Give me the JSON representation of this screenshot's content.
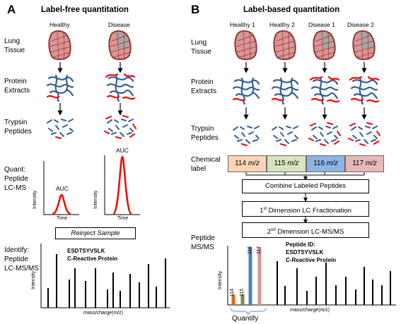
{
  "panel_a": {
    "letter": "A",
    "title": "Label-free quantitation",
    "columns": [
      "Healthy",
      "Disease"
    ],
    "rows": {
      "tissue": [
        "Lung",
        "Tissue"
      ],
      "extracts": [
        "Protein",
        "Extracts"
      ],
      "peptides": [
        "Trypsin",
        "Peptides"
      ],
      "quant": [
        "Quant:",
        "Peptide",
        "LC-MS"
      ],
      "identify": [
        "Identify:",
        "Peptide",
        "LC-MS/MS"
      ]
    },
    "auc_label": "AUC",
    "intensity_label": "Intensity",
    "time_label": "Time",
    "reinject_label": "Reinject Sample",
    "peptide_name": "ESDTSYVSLK",
    "protein_name": "C-Reactive Protein",
    "xaxis_label": "mass/charge(m/z)",
    "yaxis_label": "Intensity"
  },
  "panel_b": {
    "letter": "B",
    "title": "Label-based quantitation",
    "columns": [
      "Healthy 1",
      "Healthy 2",
      "Disease 1",
      "Disease 2"
    ],
    "rows": {
      "tissue": [
        "Lung",
        "Tissue"
      ],
      "extracts": [
        "Protein",
        "Extracts"
      ],
      "peptides": [
        "Trypsin",
        "Peptides"
      ],
      "chemical": [
        "Chemical",
        "label"
      ],
      "msms": [
        "Peptide",
        "MS/MS"
      ]
    },
    "labels": [
      {
        "num": "114",
        "unit": "m/z",
        "color": "#fbd5b5"
      },
      {
        "num": "115",
        "unit": "m/z",
        "color": "#d7e4bd"
      },
      {
        "num": "116",
        "unit": "m/z",
        "color": "#8eb4e3"
      },
      {
        "num": "117",
        "unit": "m/z",
        "color": "#e6b9b8"
      }
    ],
    "combine": "Combine Labeled Peptides",
    "first_dim": {
      "prefix": "1",
      "sup": "st",
      "rest": " Dimension LC Fractionation"
    },
    "second_dim": {
      "prefix": "2",
      "sup": "nd",
      "rest": " Dimension LC-MS/MS"
    },
    "reporter_peaks": [
      {
        "label": "114",
        "color": "#e46c0a",
        "value": 0.18
      },
      {
        "label": "115",
        "color": "#77933c",
        "value": 0.18
      },
      {
        "label": "116",
        "color": "#4f81bd",
        "value": 1.0
      },
      {
        "label": "117",
        "color": "#d99694",
        "value": 1.0
      }
    ],
    "peptide_id_label": "Peptide ID:",
    "peptide_name": "ESDTSYVSLK",
    "protein_name": "C-Reactive Protein",
    "xaxis_label": "mass/charge(m/z)",
    "yaxis_label": "Intensity",
    "quantify_label": "Quantify"
  },
  "colors": {
    "tissue_fill": "#d99694",
    "tissue_stroke": "#953735",
    "tissue_grey": "#a6a6a6",
    "fiber_blue": "#376092",
    "fiber_red": "#ff0000",
    "peak_red": "#ff0000"
  }
}
